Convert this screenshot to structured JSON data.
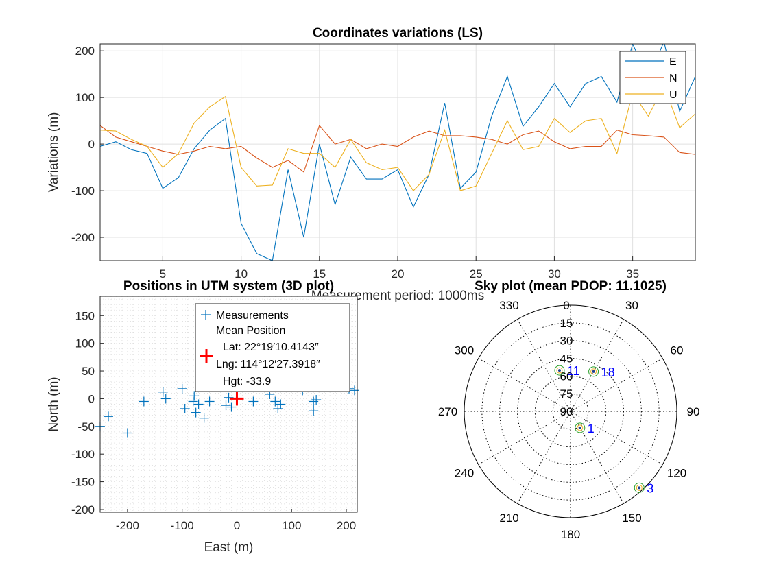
{
  "chart_data": [
    {
      "type": "line",
      "title": "Coordinates variations (LS)",
      "xlabel": "Measurement period: 1000ms",
      "ylabel": "Variations (m)",
      "xlim": [
        1,
        39
      ],
      "ylim": [
        -250,
        215
      ],
      "xticks": [
        5,
        10,
        15,
        20,
        25,
        30,
        35
      ],
      "yticks": [
        -200,
        -100,
        0,
        100,
        200
      ],
      "grid": true,
      "legend": "top-right",
      "x": [
        1,
        2,
        3,
        4,
        5,
        6,
        7,
        8,
        9,
        10,
        11,
        12,
        13,
        14,
        15,
        16,
        17,
        18,
        19,
        20,
        21,
        22,
        23,
        24,
        25,
        26,
        27,
        28,
        29,
        30,
        31,
        32,
        33,
        34,
        35,
        36,
        37,
        38,
        39
      ],
      "series": [
        {
          "name": "E",
          "color": "#0072bd",
          "values": [
            -5,
            5,
            -12,
            -20,
            -95,
            -72,
            -10,
            30,
            55,
            -170,
            -235,
            -250,
            -55,
            -200,
            0,
            -130,
            -28,
            -75,
            -75,
            -55,
            -135,
            -65,
            88,
            -95,
            -60,
            60,
            145,
            38,
            80,
            130,
            80,
            130,
            145,
            90,
            215,
            140,
            220,
            70,
            145
          ]
        },
        {
          "name": "N",
          "color": "#d95319",
          "values": [
            40,
            15,
            5,
            -5,
            -15,
            -22,
            -15,
            -5,
            -10,
            -5,
            -30,
            -50,
            -35,
            -60,
            40,
            0,
            10,
            -10,
            0,
            -5,
            15,
            28,
            18,
            18,
            15,
            10,
            0,
            20,
            28,
            5,
            -10,
            -5,
            -5,
            30,
            20,
            18,
            15,
            -18,
            -22
          ]
        },
        {
          "name": "U",
          "color": "#edb120",
          "values": [
            30,
            28,
            10,
            -5,
            -50,
            -20,
            45,
            80,
            102,
            -50,
            -90,
            -88,
            -10,
            -20,
            -20,
            -50,
            10,
            -40,
            -55,
            -50,
            -100,
            -65,
            30,
            -100,
            -90,
            -20,
            50,
            -12,
            -5,
            55,
            25,
            50,
            55,
            -20,
            110,
            60,
            125,
            35,
            65
          ]
        }
      ]
    },
    {
      "type": "scatter",
      "title": "Positions in UTM system (3D plot)",
      "xlabel": "East (m)",
      "ylabel": "North (m)",
      "xlim": [
        -250,
        220
      ],
      "ylim": [
        -205,
        185
      ],
      "xticks": [
        -200,
        -100,
        0,
        100,
        200
      ],
      "yticks": [
        -200,
        -150,
        -100,
        -50,
        0,
        50,
        100,
        150
      ],
      "grid": true,
      "legend": "top-center",
      "series": [
        {
          "name": "Measurements",
          "color": "#0072bd",
          "x": [
            -250,
            -235,
            -200,
            -170,
            -135,
            -130,
            -100,
            -95,
            -80,
            -78,
            -75,
            -70,
            -60,
            -50,
            -20,
            -15,
            -10,
            30,
            60,
            70,
            75,
            80,
            120,
            140,
            140,
            145,
            205,
            215
          ],
          "y": [
            -50,
            -32,
            -62,
            -5,
            12,
            0,
            18,
            -18,
            -5,
            5,
            -25,
            -10,
            -35,
            -5,
            -12,
            2,
            -15,
            -5,
            8,
            -5,
            -18,
            -10,
            15,
            -5,
            -22,
            -2,
            18,
            15
          ]
        },
        {
          "name": "Mean Position",
          "color": "#ff0000",
          "x": [
            0
          ],
          "y": [
            0
          ]
        }
      ],
      "legend_entries": [
        "Measurements",
        "Mean Position",
        "Lat: 22°19′10.4143″",
        "Lng: 114°12′27.3918″",
        "Hgt: -33.9"
      ]
    },
    {
      "type": "polar",
      "title": "Sky plot (mean PDOP: 11.1025)",
      "azimuth_ticks": [
        0,
        30,
        60,
        90,
        120,
        150,
        180,
        210,
        240,
        270,
        300,
        330
      ],
      "elevation_ticks": [
        0,
        15,
        30,
        45,
        60,
        75,
        90
      ],
      "satellites": [
        {
          "prn": "1",
          "azimuth": 150,
          "elevation": 74
        },
        {
          "prn": "11",
          "azimuth": 345,
          "elevation": 54
        },
        {
          "prn": "18",
          "azimuth": 30,
          "elevation": 51
        },
        {
          "prn": "3",
          "azimuth": 138,
          "elevation": 3
        }
      ]
    }
  ]
}
